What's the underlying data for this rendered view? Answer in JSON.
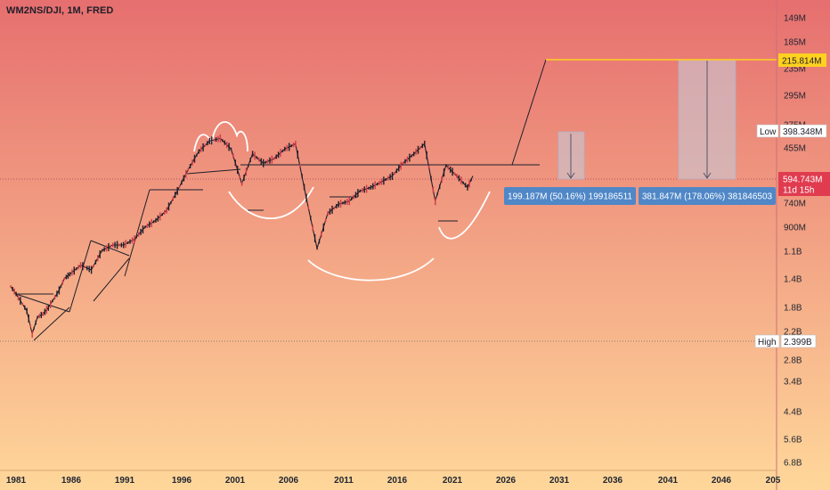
{
  "header": {
    "symbol": "WM2NS/DJI, 1M, FRED"
  },
  "colors": {
    "bg_top": "#e66f6f",
    "bg_bottom": "#ffd79a",
    "price_line": "#1e1e2a",
    "candle_up": "#1e1e2a",
    "candle_down": "#d03a48",
    "target_line": "#ffd21f",
    "current_tag": "#e03b4f",
    "measure_label": "#4f87c7",
    "measure_box": "#c8c8d6",
    "pattern_white": "#ffffff"
  },
  "chart_data": {
    "type": "line",
    "x_ticks": [
      "1981",
      "1986",
      "1991",
      "1996",
      "2001",
      "2006",
      "2011",
      "2016",
      "2021",
      "2026",
      "2031",
      "2036",
      "2041",
      "2046",
      "205"
    ],
    "y_ticks": [
      "149M",
      "185M",
      "235M",
      "295M",
      "375M",
      "455M",
      "594.743M",
      "740M",
      "900M",
      "1.1B",
      "1.4B",
      "1.8B",
      "2.2B",
      "2.8B",
      "3.4B",
      "4.4B",
      "5.6B",
      "6.8B"
    ],
    "y_axis_inverted": true,
    "series": [
      {
        "x": [
          1980.5,
          1981,
          1982,
          1982.5,
          1983,
          1983.5,
          1984,
          1985,
          1985.5,
          1986,
          1987,
          1988,
          1989,
          1990,
          1991,
          1992,
          1993,
          1994,
          1995,
          1996,
          1997,
          1998,
          1999,
          2000,
          2001,
          2002,
          2003,
          2004,
          2005,
          2006,
          2007,
          2008,
          2009,
          2010,
          2011,
          2012,
          2013,
          2014,
          2015,
          2016,
          2017,
          2018,
          2019,
          2020,
          2021,
          2022,
          2023,
          2023.5
        ],
        "values": [
          1.5,
          1.6,
          1.85,
          2.25,
          1.95,
          1.9,
          1.8,
          1.55,
          1.4,
          1.35,
          1.25,
          1.3,
          1.1,
          1.05,
          1.05,
          1.0,
          0.9,
          0.85,
          0.78,
          0.66,
          0.55,
          0.47,
          0.43,
          0.42,
          0.46,
          0.62,
          0.48,
          0.52,
          0.5,
          0.46,
          0.44,
          0.7,
          1.08,
          0.8,
          0.74,
          0.72,
          0.66,
          0.64,
          0.61,
          0.58,
          0.52,
          0.48,
          0.44,
          0.72,
          0.53,
          0.58,
          0.64,
          0.58
        ]
      }
    ],
    "current_value": {
      "price": "594.743M",
      "countdown": "11d 15h"
    },
    "high": {
      "label": "High",
      "value": "2.399B"
    },
    "low": {
      "label": "Low",
      "value": "398.348M"
    },
    "target": {
      "value": "215.814M"
    },
    "measurements": [
      {
        "text": "199.187M (50.16%) 199186511"
      },
      {
        "text": "381.847M (178.06%) 381846503"
      }
    ]
  }
}
